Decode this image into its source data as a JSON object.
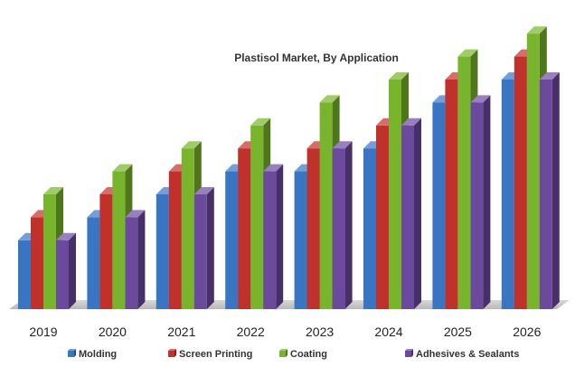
{
  "chart_data": {
    "type": "bar",
    "style": "3d-clustered",
    "title": "Plastisol Market, By Application",
    "xlabel": "",
    "ylabel": "",
    "categories": [
      "2019",
      "2020",
      "2021",
      "2022",
      "2023",
      "2024",
      "2025",
      "2026"
    ],
    "series": [
      {
        "name": "Molding",
        "color": "#3a75c4",
        "values": [
          3,
          4,
          5,
          6,
          6,
          7,
          9,
          10
        ]
      },
      {
        "name": "Screen Printing",
        "color": "#c0312c",
        "values": [
          4,
          5,
          6,
          7,
          7,
          8,
          10,
          11
        ]
      },
      {
        "name": "Coating",
        "color": "#79b52c",
        "values": [
          5,
          6,
          7,
          8,
          9,
          10,
          11,
          12
        ]
      },
      {
        "name": "Adhesives & Sealants",
        "color": "#6b4a9e",
        "values": [
          3,
          4,
          5,
          6,
          7,
          8,
          9,
          10
        ]
      }
    ],
    "ylim": [
      0,
      12
    ],
    "grid": false,
    "legend_position": "bottom"
  }
}
